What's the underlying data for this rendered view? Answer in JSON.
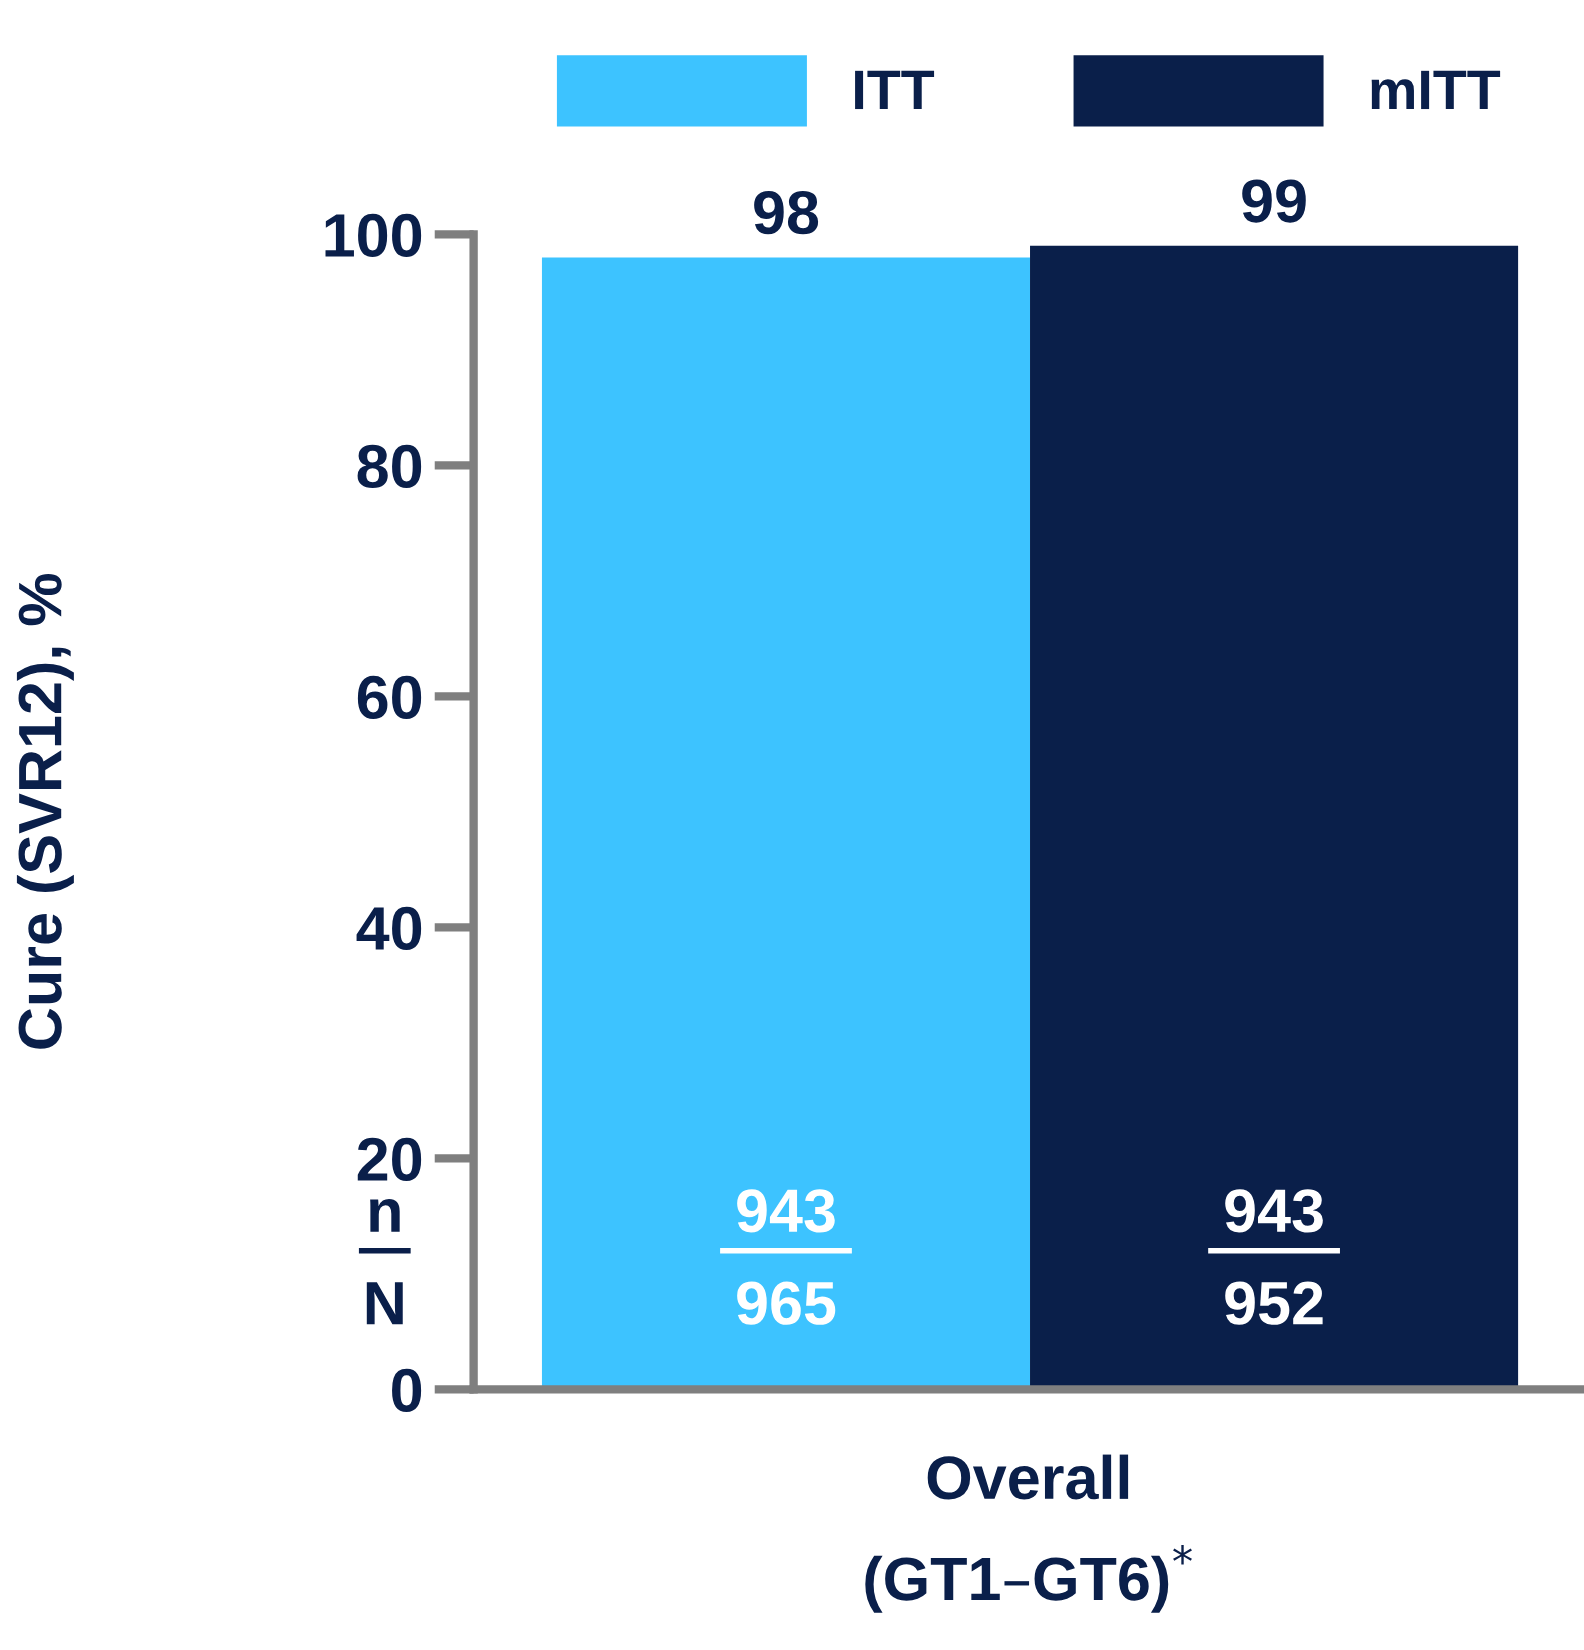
{
  "chart_data": {
    "type": "bar",
    "ylabel": "Cure (SVR12), %",
    "xlabel": "Overall\n(GT1–GT6)$^{*}$",
    "categories": [
      null,
      null
    ],
    "series": [
      {
        "name": "ITT",
        "color": "#3dc3ff",
        "values": [
          98,
          null
        ]
      },
      {
        "name": "mITT",
        "color": "#0a1f4a",
        "values": [
          null,
          99
        ]
      }
    ],
    "ylim": [
      0,
      100
    ],
    "yticks": [
      0,
      20,
      40,
      60,
      80,
      100
    ],
    "data_labels": true,
    "legend": "top",
    "grid": false,
    "annotations": [
      "n",
      "N",
      "943",
      "965",
      "943",
      "952"
    ]
  }
}
